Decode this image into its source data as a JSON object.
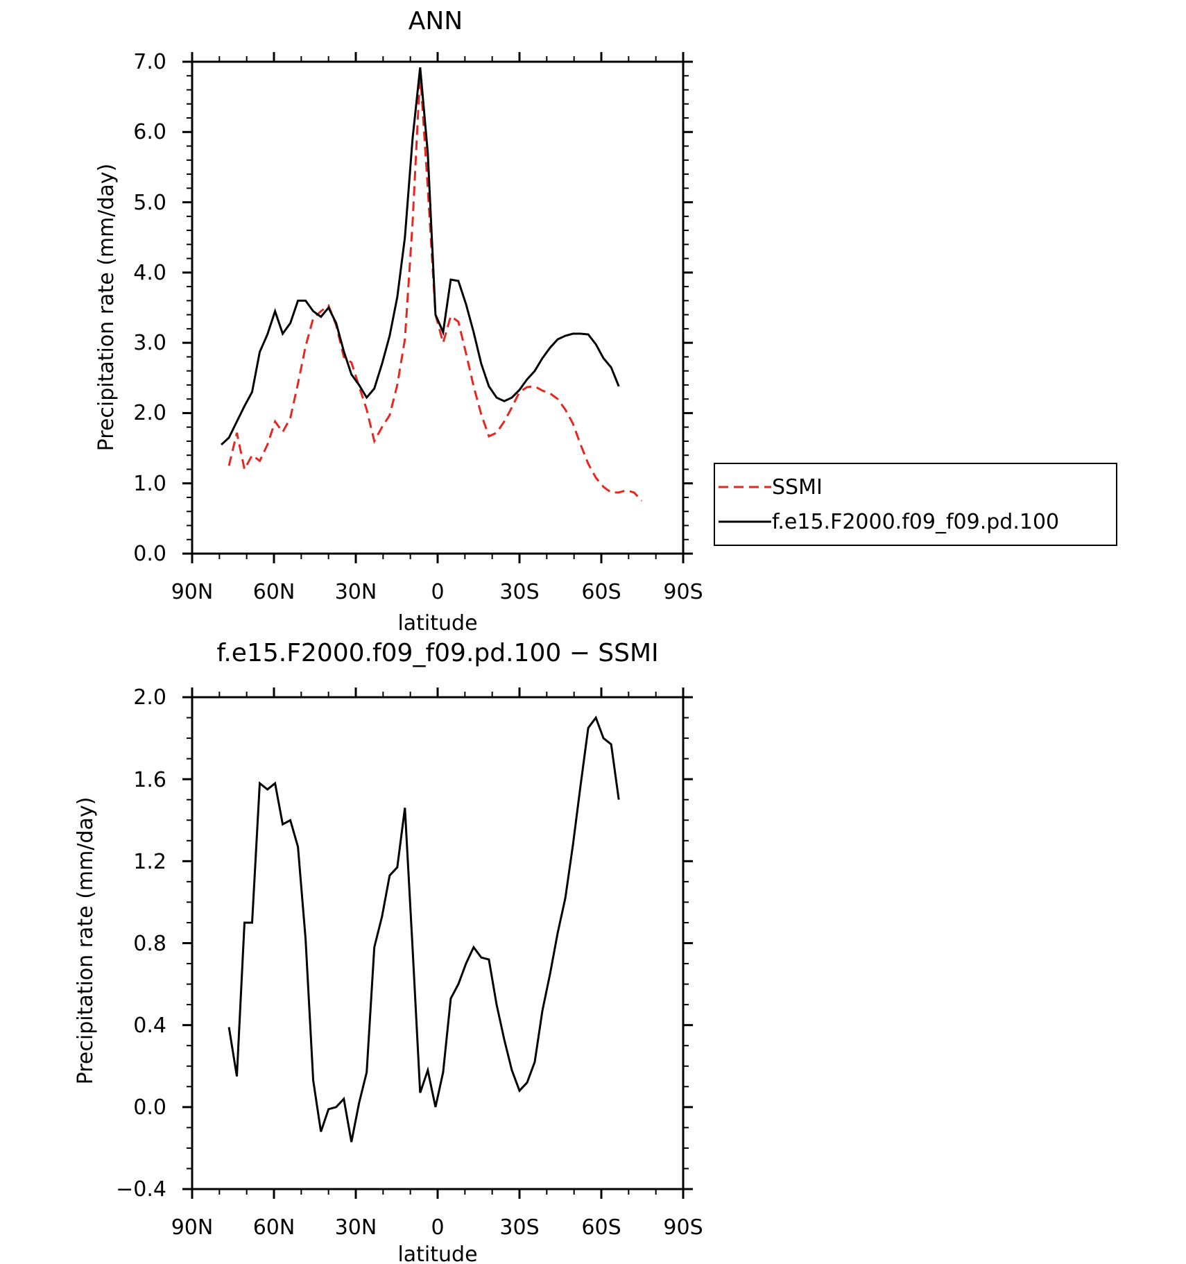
{
  "chart_data": [
    {
      "type": "line",
      "title": "ANN",
      "xlabel": "latitude",
      "ylabel": "Precipitation rate (mm/day)",
      "xlim": [
        90,
        -90
      ],
      "ylim": [
        0,
        7
      ],
      "xticks": [
        90,
        60,
        30,
        0,
        -30,
        -60,
        -90
      ],
      "xtick_labels": [
        "90N",
        "60N",
        "30N",
        "0",
        "30S",
        "60S",
        "90S"
      ],
      "yticks": [
        0,
        1,
        2,
        3,
        4,
        5,
        6,
        7
      ],
      "ytick_labels": [
        "0.0",
        "1.0",
        "2.0",
        "3.0",
        "4.0",
        "5.0",
        "6.0",
        "7.0"
      ],
      "grid": false,
      "legend": {
        "placement": "right",
        "entries": [
          {
            "label": "SSMI",
            "color": "#e8251f",
            "style": "dashed"
          },
          {
            "label": "f.e15.F2000.f09_f09.pd.100",
            "color": "#000000",
            "style": "solid"
          }
        ]
      },
      "series": [
        {
          "name": "SSMI",
          "color": "#e8251f",
          "dash": "dashed",
          "x": [
            76.5,
            73.6,
            70.8,
            68,
            65.2,
            62.4,
            59.6,
            56.8,
            54,
            51.2,
            48.4,
            45.6,
            42.8,
            40,
            37.2,
            34.4,
            31.6,
            28.8,
            26,
            23.2,
            20.4,
            17.6,
            14.8,
            12,
            9.2,
            6.4,
            3.6,
            0.8,
            -2,
            -4.8,
            -7.6,
            -10.4,
            -13.2,
            -16,
            -18.8,
            -21.6,
            -24.4,
            -27.2,
            -30,
            -32.8,
            -35.6,
            -38.4,
            -41.2,
            -44,
            -46.8,
            -49.6,
            -52.4,
            -55.2,
            -58,
            -60.8,
            -63.6,
            -66.4,
            -69.2,
            -72,
            -74.8
          ],
          "y": [
            1.25,
            1.72,
            1.2,
            1.4,
            1.32,
            1.55,
            1.88,
            1.73,
            1.93,
            2.42,
            2.95,
            3.35,
            3.45,
            3.53,
            3.25,
            2.8,
            2.72,
            2.38,
            2.05,
            1.6,
            1.8,
            1.97,
            2.4,
            3.05,
            4.7,
            6.85,
            5.2,
            3.4,
            3.0,
            3.38,
            3.3,
            2.85,
            2.38,
            1.98,
            1.67,
            1.72,
            1.88,
            2.08,
            2.3,
            2.37,
            2.38,
            2.32,
            2.28,
            2.2,
            2.05,
            1.85,
            1.55,
            1.28,
            1.08,
            0.95,
            0.87,
            0.87,
            0.9,
            0.87,
            0.75
          ]
        },
        {
          "name": "f.e15.F2000.f09_f09.pd.100",
          "color": "#000000",
          "dash": "solid",
          "x": [
            79.3,
            76.5,
            73.6,
            70.8,
            68,
            65.2,
            62.4,
            59.6,
            56.8,
            54,
            51.2,
            48.4,
            45.6,
            42.8,
            40,
            37.2,
            34.4,
            31.6,
            28.8,
            26,
            23.2,
            20.4,
            17.6,
            14.8,
            12,
            9.2,
            6.4,
            3.6,
            0.8,
            -2,
            -4.8,
            -7.6,
            -10.4,
            -13.2,
            -16,
            -18.8,
            -21.6,
            -24.4,
            -27.2,
            -30,
            -32.8,
            -35.6,
            -38.4,
            -41.2,
            -44,
            -46.8,
            -49.6,
            -52.4,
            -55.2,
            -58,
            -60.8,
            -63.6,
            -66.4
          ],
          "y": [
            1.55,
            1.65,
            1.88,
            2.1,
            2.3,
            2.87,
            3.12,
            3.45,
            3.13,
            3.28,
            3.6,
            3.6,
            3.45,
            3.37,
            3.5,
            3.28,
            2.88,
            2.55,
            2.4,
            2.22,
            2.35,
            2.7,
            3.1,
            3.65,
            4.5,
            5.9,
            6.92,
            5.7,
            3.4,
            3.15,
            3.9,
            3.88,
            3.55,
            3.15,
            2.7,
            2.38,
            2.22,
            2.17,
            2.22,
            2.33,
            2.48,
            2.6,
            2.78,
            2.93,
            3.05,
            3.1,
            3.13,
            3.13,
            3.12,
            2.98,
            2.78,
            2.65,
            2.38
          ]
        }
      ]
    },
    {
      "type": "line",
      "title": "f.e15.F2000.f09_f09.pd.100 − SSMI",
      "xlabel": "latitude",
      "ylabel": "Precipitation rate (mm/day)",
      "xlim": [
        90,
        -90
      ],
      "ylim": [
        -0.4,
        2.0
      ],
      "xticks": [
        90,
        60,
        30,
        0,
        -30,
        -60,
        -90
      ],
      "xtick_labels": [
        "90N",
        "60N",
        "30N",
        "0",
        "30S",
        "60S",
        "90S"
      ],
      "yticks": [
        -0.4,
        0,
        0.4,
        0.8,
        1.2,
        1.6,
        2.0
      ],
      "ytick_labels": [
        "−0.4",
        "0.0",
        "0.4",
        "0.8",
        "1.2",
        "1.6",
        "2.0"
      ],
      "grid": false,
      "series": [
        {
          "color": "#000000",
          "dash": "solid",
          "x": [
            76.5,
            73.6,
            70.8,
            68,
            65.2,
            62.4,
            59.6,
            56.8,
            54,
            51.2,
            48.4,
            45.6,
            42.8,
            40,
            37.2,
            34.4,
            31.6,
            28.8,
            26,
            23.2,
            20.4,
            17.6,
            14.8,
            12,
            9.2,
            6.4,
            3.6,
            0.8,
            -2,
            -4.8,
            -7.6,
            -10.4,
            -13.2,
            -16,
            -18.8,
            -21.6,
            -24.4,
            -27.2,
            -30,
            -32.8,
            -35.6,
            -38.4,
            -41.2,
            -44,
            -46.8,
            -49.6,
            -52.4,
            -55.2,
            -58,
            -60.8,
            -63.6,
            -66.4
          ],
          "y": [
            0.39,
            0.15,
            0.9,
            0.9,
            1.58,
            1.55,
            1.58,
            1.38,
            1.4,
            1.27,
            0.82,
            0.13,
            -0.12,
            -0.01,
            0.0,
            0.04,
            -0.17,
            0.02,
            0.17,
            0.78,
            0.93,
            1.13,
            1.17,
            1.46,
            0.78,
            0.07,
            0.18,
            0.0,
            0.17,
            0.53,
            0.6,
            0.7,
            0.78,
            0.73,
            0.72,
            0.5,
            0.33,
            0.18,
            0.08,
            0.12,
            0.22,
            0.47,
            0.65,
            0.85,
            1.02,
            1.28,
            1.57,
            1.85,
            1.9,
            1.8,
            1.77,
            1.5
          ]
        }
      ]
    }
  ]
}
